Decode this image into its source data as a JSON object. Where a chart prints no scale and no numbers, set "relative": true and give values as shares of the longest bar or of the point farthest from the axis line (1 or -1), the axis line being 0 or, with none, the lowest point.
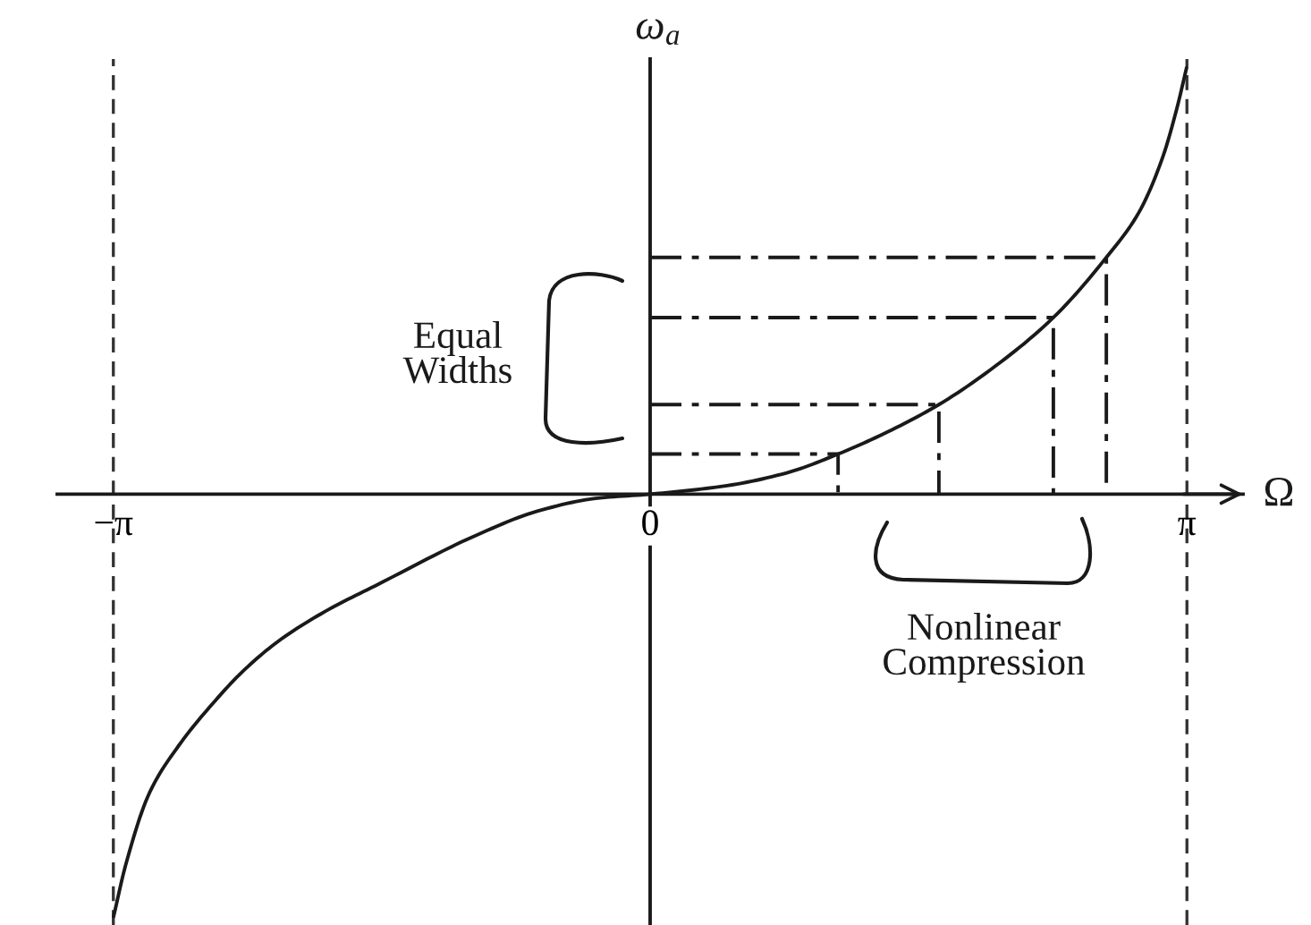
{
  "chart_data": {
    "type": "line",
    "relative": true,
    "xlabel": "Ω",
    "ylabel": "ω$_{a}$",
    "xlim": [
      -3.47,
      3.47
    ],
    "xticks": [
      {
        "value": -3.1416,
        "label": "−π"
      },
      {
        "value": 0,
        "label": "0"
      },
      {
        "value": 3.1416,
        "label": "π"
      }
    ],
    "series": [
      {
        "color": "#1a1a1a",
        "line_style": "solid",
        "x": [
          -3.14,
          -3.07,
          -2.93,
          -2.76,
          -2.58,
          -2.37,
          -2.16,
          -1.88,
          -1.61,
          -1.01,
          -0.66,
          -0.32,
          0,
          0.45,
          0.8,
          1.1,
          1.39,
          1.69,
          2.02,
          2.36,
          2.67,
          2.86,
          3.0,
          3.08,
          3.14
        ],
        "values": [
          -0.99,
          -0.87,
          -0.7,
          -0.59,
          -0.5,
          -0.41,
          -0.34,
          -0.27,
          -0.215,
          -0.095,
          -0.04,
          -0.01,
          0,
          0.02,
          0.05,
          0.094,
          0.146,
          0.21,
          0.3,
          0.414,
          0.555,
          0.66,
          0.79,
          0.9,
          1
        ]
      },
      {
        "color": "#1a1a1a",
        "line_style": "dashdot",
        "x": [
          0,
          1.1,
          1.1
        ],
        "values": [
          0.094,
          0.094,
          0
        ]
      },
      {
        "color": "#1a1a1a",
        "line_style": "dashdot",
        "x": [
          0,
          1.69,
          1.69
        ],
        "values": [
          0.21,
          0.21,
          0
        ]
      },
      {
        "color": "#1a1a1a",
        "line_style": "dashdot",
        "x": [
          0,
          2.36,
          2.36
        ],
        "values": [
          0.414,
          0.414,
          0
        ]
      },
      {
        "color": "#1a1a1a",
        "line_style": "dashdot",
        "x": [
          0,
          2.67,
          2.67
        ],
        "values": [
          0.555,
          0.555,
          0
        ]
      }
    ],
    "ref_lines": [
      {
        "axis": "x",
        "value": -3.1416,
        "line_style": "dashed",
        "color": "#333333"
      },
      {
        "axis": "x",
        "value": 3.1416,
        "line_style": "dashed",
        "color": "#333333"
      }
    ],
    "annotations": [
      "Equal\nWidths",
      "Nonlinear\nCompression"
    ]
  }
}
